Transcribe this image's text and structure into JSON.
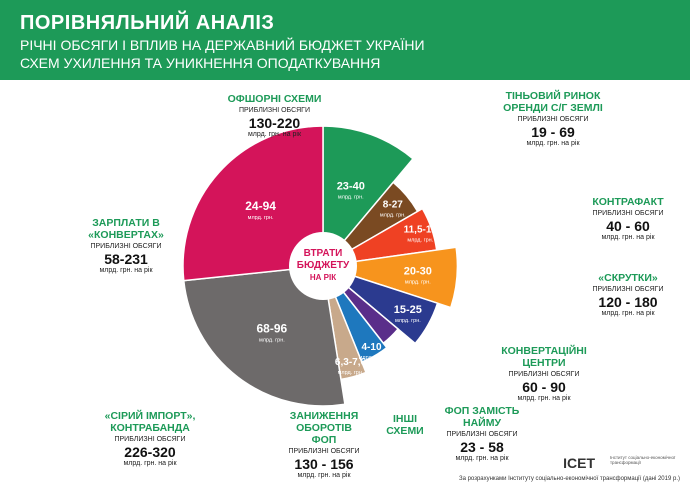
{
  "header": {
    "title": "ПОРІВНЯЛЬНИЙ АНАЛІЗ",
    "subtitle_line1": "РІЧНІ ОБСЯГИ І ВПЛИВ НА ДЕРЖАВНИЙ БЮДЖЕТ УКРАЇНИ",
    "subtitle_line2": "СХЕМ УХИЛЕННЯ ТА УНИКНЕННЯ ОПОДАТКУВАННЯ"
  },
  "center_label": [
    "ВТРАТИ",
    "БЮДЖЕТУ",
    "НА РІК"
  ],
  "segment_unit": "млрд. грн.",
  "colors": {
    "green": "#1d9a58",
    "magenta": "#d4145a",
    "gray": "#6d6a6a",
    "tan": "#c8a98b",
    "blue": "#1e78be",
    "purple": "#5a2e8a",
    "navy": "#2b3a8f",
    "orange": "#f7941d",
    "red_orange": "#ef4123",
    "brown": "#7a4a22"
  },
  "chart_data": {
    "type": "pie",
    "title": "ПОРІВНЯЛЬНИЙ АНАЛІЗ",
    "unit": "млрд. грн.",
    "slices": [
      {
        "label": "23-40",
        "color": "#1d9a58"
      },
      {
        "label": "8-27",
        "color": "#7a4a22"
      },
      {
        "label": "11,5-16",
        "color": "#ef4123"
      },
      {
        "label": "20-30",
        "color": "#f7941d"
      },
      {
        "label": "15-25",
        "color": "#2b3a8f"
      },
      {
        "label": "",
        "color": "#5a2e8a"
      },
      {
        "label": "4-10",
        "color": "#1e78be"
      },
      {
        "label": "6,3-7,6",
        "color": "#c8a98b"
      },
      {
        "label": "68-96",
        "color": "#6d6a6a"
      },
      {
        "label": "24-94",
        "color": "#d4145a"
      }
    ]
  },
  "callouts": [
    {
      "name": "ОФШОРНІ СХЕМИ",
      "approx": "ПРИБЛИЗНІ ОБСЯГИ",
      "range": "130-220",
      "unit": "млрд. грн. на рік"
    },
    {
      "name": "ТІНЬОВИЙ РИНОК ОРЕНДИ С/Г ЗЕМЛІ",
      "approx": "ПРИБЛИЗНІ ОБСЯГИ",
      "range": "19 - 69",
      "unit": "млрд. грн. на рік"
    },
    {
      "name": "КОНТРАФАКТ",
      "approx": "ПРИБЛИЗНІ ОБСЯГИ",
      "range": "40 - 60",
      "unit": "млрд. грн. на рік"
    },
    {
      "name": "«СКРУТКИ»",
      "approx": "ПРИБЛИЗНІ ОБСЯГИ",
      "range": "120 - 180",
      "unit": "млрд. грн. на рік"
    },
    {
      "name": "КОНВЕРТАЦІЙНІ ЦЕНТРИ",
      "approx": "ПРИБЛИЗНІ ОБСЯГИ",
      "range": "60 - 90",
      "unit": "млрд. грн. на рік"
    },
    {
      "name": "ФОП ЗАМІСТЬ НАЙМУ",
      "approx": "ПРИБЛИЗНІ ОБСЯГИ",
      "range": "23 - 58",
      "unit": "млрд. грн. на рік"
    },
    {
      "name": "ІНШІ СХЕМИ"
    },
    {
      "name": "ЗАНИЖЕННЯ ОБОРОТІВ ФОП",
      "approx": "ПРИБЛИЗНІ ОБСЯГИ",
      "range": "130 - 156",
      "unit": "млрд. грн. на рік"
    },
    {
      "name": "«СІРИЙ ІМПОРТ», КОНТРАБАНДА",
      "approx": "ПРИБЛИЗНІ ОБСЯГИ",
      "range": "226-320",
      "unit": "млрд. грн. на рік"
    },
    {
      "name": "ЗАРПЛАТИ В «КОНВЕРТАХ»",
      "approx": "ПРИБЛИЗНІ ОБСЯГИ",
      "range": "58-231",
      "unit": "млрд. грн. на рік"
    }
  ],
  "footer": {
    "source": "За розрахунками Інституту соціально-економічної трансформації (дані 2019 р.)",
    "logo": "ІСЕТ",
    "logo_sub": "Інститут соціально-економічної трансформації"
  }
}
